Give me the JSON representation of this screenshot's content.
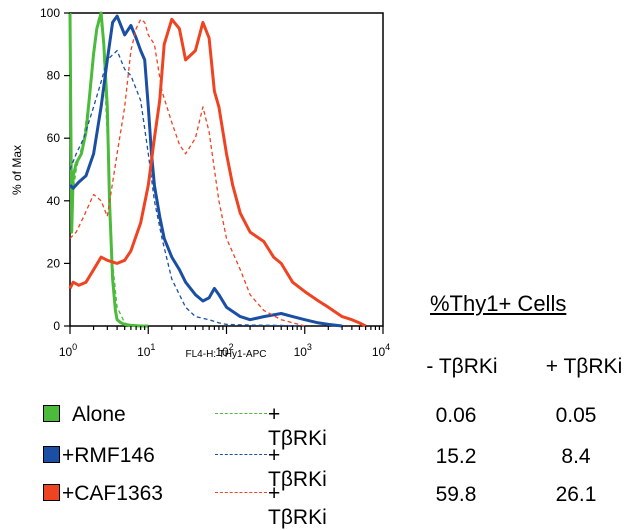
{
  "chart_data": {
    "type": "line",
    "title": "",
    "xlabel": "FL4-H: THy1-APC",
    "ylabel": "% of Max",
    "x_scale": "log",
    "xlim": [
      1,
      10000
    ],
    "ylim": [
      0,
      100
    ],
    "x_tick_labels": [
      {
        "base": "10",
        "exp": "0"
      },
      {
        "base": "10",
        "exp": "1"
      },
      {
        "base": "10",
        "exp": "2"
      },
      {
        "base": "10",
        "exp": "3"
      },
      {
        "base": "10",
        "exp": "4"
      }
    ],
    "y_tick_labels": [
      "0",
      "20",
      "40",
      "60",
      "80",
      "100"
    ],
    "grid": false,
    "series": [
      {
        "color": "#4cbb3c",
        "style": "solid",
        "x": [
          1,
          1.05,
          1.1,
          1.2,
          1.4,
          1.6,
          1.8,
          2,
          2.2,
          2.5,
          2.7,
          3,
          3.2,
          3.5,
          3.8,
          4,
          4.5,
          5,
          6,
          8,
          10
        ],
        "y": [
          100,
          30,
          48,
          52,
          55,
          62,
          75,
          87,
          95,
          100,
          90,
          70,
          40,
          15,
          5,
          2,
          1,
          0.5,
          0.2,
          0,
          0
        ]
      },
      {
        "color": "#4cbb3c",
        "style": "dashed",
        "x": [
          1,
          1.05,
          1.2,
          1.5,
          2,
          2.3,
          2.6,
          3,
          3.5,
          4,
          5,
          6
        ],
        "y": [
          98,
          40,
          50,
          60,
          85,
          98,
          95,
          60,
          20,
          6,
          1,
          0
        ]
      },
      {
        "color": "#1a4fa3",
        "style": "solid",
        "x": [
          1,
          1.1,
          1.3,
          1.6,
          2,
          2.5,
          3,
          3.5,
          4,
          5,
          6,
          7,
          8,
          9,
          10,
          11,
          12,
          14,
          16,
          20,
          25,
          30,
          40,
          50,
          60,
          70,
          80,
          100,
          150,
          200,
          300,
          500,
          700,
          1000,
          1500,
          2000,
          3000
        ],
        "y": [
          45,
          44,
          46,
          48,
          55,
          70,
          85,
          97,
          99,
          93,
          96,
          92,
          88,
          85,
          70,
          55,
          45,
          35,
          28,
          22,
          18,
          14,
          10,
          8,
          9,
          12,
          10,
          6,
          3,
          2,
          3,
          4,
          3,
          2,
          1,
          0.5,
          0
        ]
      },
      {
        "color": "#1a4fa3",
        "style": "dashed",
        "x": [
          1,
          1.2,
          1.5,
          2,
          2.5,
          3,
          4,
          5,
          6,
          8,
          10,
          12,
          15,
          20,
          30,
          40,
          60,
          80,
          100,
          200,
          500,
          1000
        ],
        "y": [
          50,
          55,
          60,
          70,
          78,
          85,
          88,
          82,
          80,
          72,
          55,
          40,
          28,
          15,
          6,
          3,
          2,
          1,
          0.5,
          0.3,
          0.2,
          0
        ]
      },
      {
        "color": "#ee4422",
        "style": "solid",
        "x": [
          1,
          1.1,
          1.3,
          1.6,
          2,
          2.5,
          3,
          4,
          5,
          6,
          8,
          10,
          12,
          14,
          16,
          20,
          25,
          30,
          40,
          50,
          60,
          70,
          80,
          100,
          120,
          150,
          200,
          300,
          400,
          500,
          700,
          1000,
          1500,
          2000,
          3000,
          4000,
          5000,
          6000
        ],
        "y": [
          12,
          14,
          13,
          14,
          18,
          22,
          21,
          20,
          21,
          24,
          33,
          45,
          60,
          72,
          90,
          98,
          95,
          85,
          88,
          97,
          92,
          75,
          70,
          55,
          45,
          36,
          30,
          27,
          22,
          20,
          14,
          11,
          8,
          6,
          3,
          2,
          1,
          0
        ]
      },
      {
        "color": "#ee4422",
        "style": "dashed",
        "x": [
          1,
          1.2,
          1.5,
          2,
          2.5,
          3,
          4,
          5,
          6,
          7,
          8,
          9,
          10,
          12,
          15,
          20,
          25,
          30,
          40,
          50,
          60,
          70,
          80,
          100,
          150,
          200,
          300,
          500,
          1000
        ],
        "y": [
          28,
          30,
          35,
          42,
          40,
          35,
          55,
          70,
          88,
          95,
          98,
          97,
          93,
          90,
          75,
          65,
          58,
          55,
          60,
          70,
          62,
          50,
          40,
          28,
          18,
          10,
          5,
          2,
          0
        ]
      }
    ]
  },
  "legend": {
    "items": [
      {
        "label": "Alone",
        "color": "#4cbb3c",
        "dashed_label": "+ TβRKi"
      },
      {
        "label": "+RMF146",
        "color": "#1a4fa3",
        "dashed_label": "+ TβRKi"
      },
      {
        "label": "+CAF1363",
        "color": "#ee4422",
        "dashed_label": "+ TβRKi"
      }
    ]
  },
  "table": {
    "title": "%Thy1+ Cells",
    "col_headers": [
      "- TβRKi",
      "+ TβRKi"
    ],
    "rows": [
      [
        "0.06",
        "0.05"
      ],
      [
        "15.2",
        "8.4"
      ],
      [
        "59.8",
        "26.1"
      ]
    ]
  }
}
